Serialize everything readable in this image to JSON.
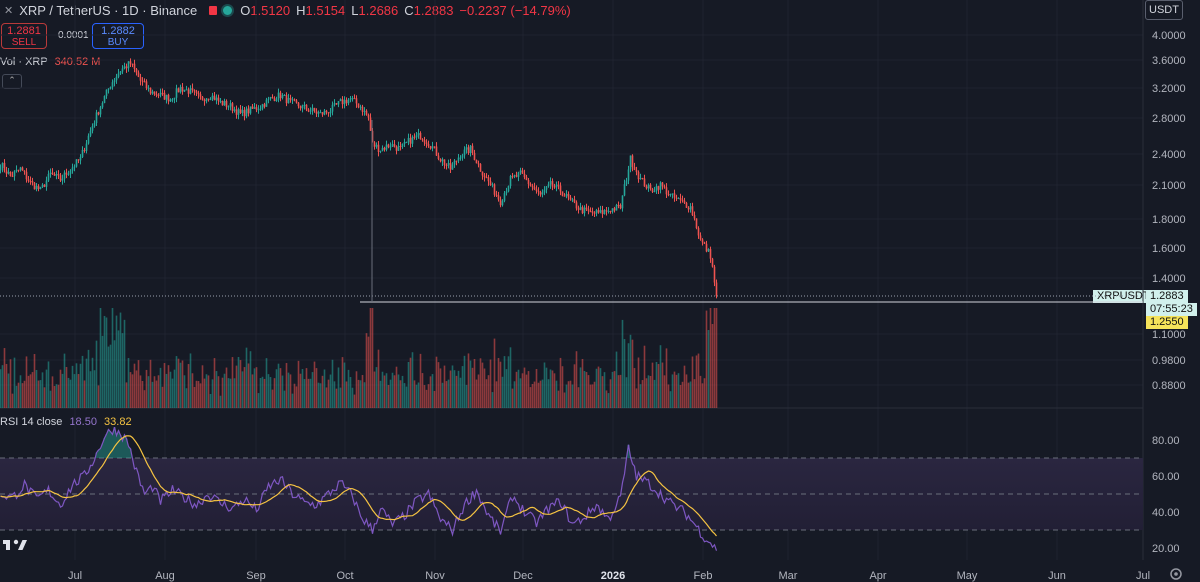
{
  "header": {
    "close_icon_glyph": "✕",
    "symbol": "XRP / TetherUS · 1D · Binance",
    "open_label": "O",
    "open": "1.5120",
    "high_label": "H",
    "high": "1.5154",
    "low_label": "L",
    "low": "1.2686",
    "close_label": "C",
    "close": "1.2883",
    "change": "−0.2237 (−14.79%)"
  },
  "trade": {
    "sell_price": "1.2881",
    "sell_label": "SELL",
    "spread": "0.0001",
    "buy_price": "1.2882",
    "buy_label": "BUY"
  },
  "currency": "USDT",
  "volume_legend": {
    "name": "Vol · XRP",
    "value": "340.52 M"
  },
  "rsi_legend": {
    "name": "RSI 14 close",
    "rsi": "18.50",
    "ma": "33.82"
  },
  "price_tag": {
    "symbol": "XRPUSDT",
    "price": "1.2883",
    "countdown": "07:55:23",
    "line_price": "1.2550"
  },
  "colors": {
    "up": "#26a69a",
    "down": "#ef5350",
    "rsi": "#7e57c2",
    "rsi_ma": "#f5c342",
    "background": "#161a25"
  },
  "chart_data": [
    {
      "type": "candlestick",
      "x_ticks": [
        "Jul",
        "Aug",
        "Sep",
        "Oct",
        "Nov",
        "Dec",
        "2026",
        "Feb",
        "Mar",
        "Apr",
        "May",
        "Jun",
        "Jul"
      ],
      "y_ticks": [
        "4.0000",
        "3.6000",
        "3.2000",
        "2.8000",
        "2.4000",
        "2.1000",
        "1.8000",
        "1.6000",
        "1.4000",
        "1.1000",
        "0.9800",
        "0.8800"
      ],
      "close_anchors": [
        [
          0,
          2.3
        ],
        [
          5,
          2.18
        ],
        [
          10,
          2.25
        ],
        [
          15,
          2.12
        ],
        [
          20,
          2.05
        ],
        [
          25,
          2.2
        ],
        [
          30,
          2.15
        ],
        [
          35,
          2.25
        ],
        [
          40,
          2.35
        ],
        [
          45,
          2.65
        ],
        [
          50,
          2.95
        ],
        [
          55,
          3.25
        ],
        [
          60,
          3.45
        ],
        [
          65,
          3.55
        ],
        [
          70,
          3.3
        ],
        [
          75,
          3.15
        ],
        [
          80,
          3.1
        ],
        [
          85,
          3.05
        ],
        [
          90,
          3.2
        ],
        [
          95,
          3.15
        ],
        [
          100,
          3.05
        ],
        [
          105,
          3.1
        ],
        [
          110,
          3.0
        ],
        [
          115,
          2.95
        ],
        [
          120,
          2.85
        ],
        [
          125,
          2.9
        ],
        [
          130,
          2.95
        ],
        [
          135,
          3.05
        ],
        [
          140,
          3.1
        ],
        [
          145,
          3.0
        ],
        [
          150,
          2.95
        ],
        [
          155,
          2.9
        ],
        [
          160,
          2.85
        ],
        [
          165,
          2.9
        ],
        [
          170,
          3.0
        ],
        [
          175,
          3.05
        ],
        [
          180,
          2.95
        ],
        [
          184,
          2.8
        ],
        [
          186,
          2.5
        ],
        [
          190,
          2.45
        ],
        [
          195,
          2.5
        ],
        [
          200,
          2.45
        ],
        [
          205,
          2.55
        ],
        [
          210,
          2.6
        ],
        [
          215,
          2.5
        ],
        [
          220,
          2.35
        ],
        [
          225,
          2.25
        ],
        [
          230,
          2.4
        ],
        [
          235,
          2.45
        ],
        [
          240,
          2.25
        ],
        [
          245,
          2.1
        ],
        [
          250,
          1.95
        ],
        [
          255,
          2.15
        ],
        [
          260,
          2.2
        ],
        [
          265,
          2.1
        ],
        [
          270,
          2.0
        ],
        [
          275,
          2.1
        ],
        [
          280,
          2.05
        ],
        [
          285,
          1.95
        ],
        [
          290,
          1.88
        ],
        [
          295,
          1.85
        ],
        [
          300,
          1.85
        ],
        [
          305,
          1.88
        ],
        [
          310,
          1.9
        ],
        [
          315,
          2.35
        ],
        [
          320,
          2.15
        ],
        [
          325,
          2.05
        ],
        [
          330,
          2.1
        ],
        [
          335,
          2.0
        ],
        [
          340,
          1.95
        ],
        [
          345,
          1.9
        ],
        [
          350,
          1.65
        ],
        [
          355,
          1.55
        ],
        [
          358,
          1.2883
        ]
      ],
      "volume": {
        "legend": "Vol · XRP",
        "last": "340.52 M"
      }
    },
    {
      "type": "line",
      "name": "RSI 14 close",
      "ylim": [
        0,
        100
      ],
      "y_ticks": [
        "80.00",
        "60.00",
        "40.00",
        "20.00"
      ],
      "bands": [
        70,
        50,
        30
      ],
      "rsi_anchors": [
        [
          0,
          50
        ],
        [
          6,
          48
        ],
        [
          12,
          55
        ],
        [
          18,
          47
        ],
        [
          24,
          52
        ],
        [
          30,
          44
        ],
        [
          36,
          55
        ],
        [
          42,
          60
        ],
        [
          48,
          72
        ],
        [
          52,
          82
        ],
        [
          56,
          86
        ],
        [
          60,
          84
        ],
        [
          64,
          78
        ],
        [
          68,
          62
        ],
        [
          72,
          50
        ],
        [
          76,
          54
        ],
        [
          80,
          46
        ],
        [
          86,
          52
        ],
        [
          92,
          48
        ],
        [
          98,
          44
        ],
        [
          104,
          50
        ],
        [
          110,
          45
        ],
        [
          116,
          42
        ],
        [
          122,
          47
        ],
        [
          128,
          41
        ],
        [
          134,
          54
        ],
        [
          140,
          58
        ],
        [
          146,
          50
        ],
        [
          152,
          45
        ],
        [
          158,
          44
        ],
        [
          164,
          50
        ],
        [
          170,
          56
        ],
        [
          176,
          49
        ],
        [
          180,
          38
        ],
        [
          186,
          30
        ],
        [
          190,
          42
        ],
        [
          196,
          33
        ],
        [
          202,
          38
        ],
        [
          208,
          46
        ],
        [
          214,
          50
        ],
        [
          220,
          36
        ],
        [
          226,
          30
        ],
        [
          232,
          44
        ],
        [
          238,
          52
        ],
        [
          244,
          38
        ],
        [
          250,
          29
        ],
        [
          256,
          49
        ],
        [
          262,
          40
        ],
        [
          268,
          34
        ],
        [
          274,
          42
        ],
        [
          280,
          46
        ],
        [
          286,
          33
        ],
        [
          292,
          37
        ],
        [
          298,
          44
        ],
        [
          304,
          36
        ],
        [
          310,
          48
        ],
        [
          314,
          75
        ],
        [
          318,
          60
        ],
        [
          324,
          56
        ],
        [
          330,
          50
        ],
        [
          336,
          44
        ],
        [
          342,
          40
        ],
        [
          348,
          32
        ],
        [
          352,
          26
        ],
        [
          356,
          22
        ],
        [
          358,
          18.5
        ]
      ]
    }
  ]
}
